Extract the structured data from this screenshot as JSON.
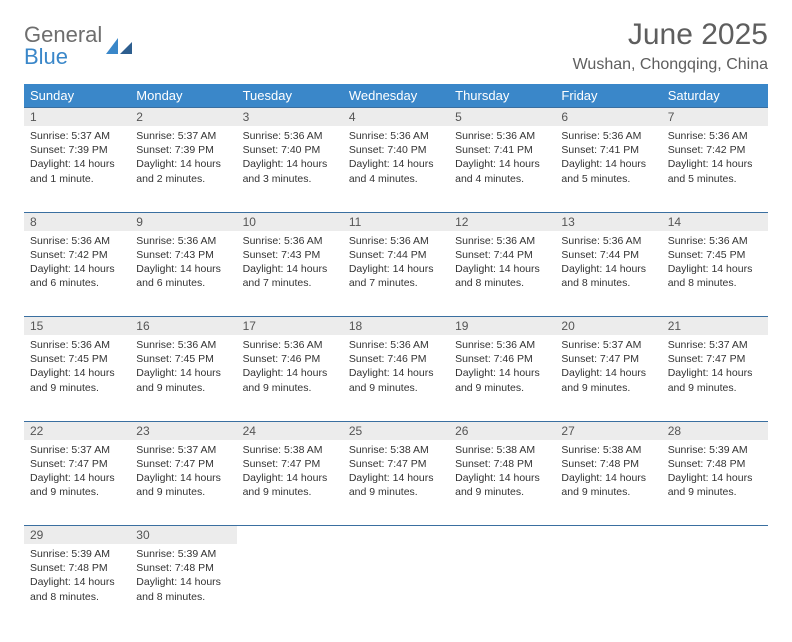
{
  "brand": {
    "line1": "General",
    "line2": "Blue"
  },
  "title": "June 2025",
  "location": "Wushan, Chongqing, China",
  "colors": {
    "header_bg": "#3a87c9",
    "header_text": "#ffffff",
    "daynum_bg": "#ececec",
    "rule": "#3a6fa0",
    "page_bg": "#ffffff",
    "text": "#333333",
    "logo_gray": "#6e6e6e",
    "logo_blue": "#3a87c9"
  },
  "weekdays": [
    "Sunday",
    "Monday",
    "Tuesday",
    "Wednesday",
    "Thursday",
    "Friday",
    "Saturday"
  ],
  "weeks": [
    {
      "days": [
        {
          "num": "1",
          "sunrise": "Sunrise: 5:37 AM",
          "sunset": "Sunset: 7:39 PM",
          "daylight": "Daylight: 14 hours and 1 minute."
        },
        {
          "num": "2",
          "sunrise": "Sunrise: 5:37 AM",
          "sunset": "Sunset: 7:39 PM",
          "daylight": "Daylight: 14 hours and 2 minutes."
        },
        {
          "num": "3",
          "sunrise": "Sunrise: 5:36 AM",
          "sunset": "Sunset: 7:40 PM",
          "daylight": "Daylight: 14 hours and 3 minutes."
        },
        {
          "num": "4",
          "sunrise": "Sunrise: 5:36 AM",
          "sunset": "Sunset: 7:40 PM",
          "daylight": "Daylight: 14 hours and 4 minutes."
        },
        {
          "num": "5",
          "sunrise": "Sunrise: 5:36 AM",
          "sunset": "Sunset: 7:41 PM",
          "daylight": "Daylight: 14 hours and 4 minutes."
        },
        {
          "num": "6",
          "sunrise": "Sunrise: 5:36 AM",
          "sunset": "Sunset: 7:41 PM",
          "daylight": "Daylight: 14 hours and 5 minutes."
        },
        {
          "num": "7",
          "sunrise": "Sunrise: 5:36 AM",
          "sunset": "Sunset: 7:42 PM",
          "daylight": "Daylight: 14 hours and 5 minutes."
        }
      ]
    },
    {
      "days": [
        {
          "num": "8",
          "sunrise": "Sunrise: 5:36 AM",
          "sunset": "Sunset: 7:42 PM",
          "daylight": "Daylight: 14 hours and 6 minutes."
        },
        {
          "num": "9",
          "sunrise": "Sunrise: 5:36 AM",
          "sunset": "Sunset: 7:43 PM",
          "daylight": "Daylight: 14 hours and 6 minutes."
        },
        {
          "num": "10",
          "sunrise": "Sunrise: 5:36 AM",
          "sunset": "Sunset: 7:43 PM",
          "daylight": "Daylight: 14 hours and 7 minutes."
        },
        {
          "num": "11",
          "sunrise": "Sunrise: 5:36 AM",
          "sunset": "Sunset: 7:44 PM",
          "daylight": "Daylight: 14 hours and 7 minutes."
        },
        {
          "num": "12",
          "sunrise": "Sunrise: 5:36 AM",
          "sunset": "Sunset: 7:44 PM",
          "daylight": "Daylight: 14 hours and 8 minutes."
        },
        {
          "num": "13",
          "sunrise": "Sunrise: 5:36 AM",
          "sunset": "Sunset: 7:44 PM",
          "daylight": "Daylight: 14 hours and 8 minutes."
        },
        {
          "num": "14",
          "sunrise": "Sunrise: 5:36 AM",
          "sunset": "Sunset: 7:45 PM",
          "daylight": "Daylight: 14 hours and 8 minutes."
        }
      ]
    },
    {
      "days": [
        {
          "num": "15",
          "sunrise": "Sunrise: 5:36 AM",
          "sunset": "Sunset: 7:45 PM",
          "daylight": "Daylight: 14 hours and 9 minutes."
        },
        {
          "num": "16",
          "sunrise": "Sunrise: 5:36 AM",
          "sunset": "Sunset: 7:45 PM",
          "daylight": "Daylight: 14 hours and 9 minutes."
        },
        {
          "num": "17",
          "sunrise": "Sunrise: 5:36 AM",
          "sunset": "Sunset: 7:46 PM",
          "daylight": "Daylight: 14 hours and 9 minutes."
        },
        {
          "num": "18",
          "sunrise": "Sunrise: 5:36 AM",
          "sunset": "Sunset: 7:46 PM",
          "daylight": "Daylight: 14 hours and 9 minutes."
        },
        {
          "num": "19",
          "sunrise": "Sunrise: 5:36 AM",
          "sunset": "Sunset: 7:46 PM",
          "daylight": "Daylight: 14 hours and 9 minutes."
        },
        {
          "num": "20",
          "sunrise": "Sunrise: 5:37 AM",
          "sunset": "Sunset: 7:47 PM",
          "daylight": "Daylight: 14 hours and 9 minutes."
        },
        {
          "num": "21",
          "sunrise": "Sunrise: 5:37 AM",
          "sunset": "Sunset: 7:47 PM",
          "daylight": "Daylight: 14 hours and 9 minutes."
        }
      ]
    },
    {
      "days": [
        {
          "num": "22",
          "sunrise": "Sunrise: 5:37 AM",
          "sunset": "Sunset: 7:47 PM",
          "daylight": "Daylight: 14 hours and 9 minutes."
        },
        {
          "num": "23",
          "sunrise": "Sunrise: 5:37 AM",
          "sunset": "Sunset: 7:47 PM",
          "daylight": "Daylight: 14 hours and 9 minutes."
        },
        {
          "num": "24",
          "sunrise": "Sunrise: 5:38 AM",
          "sunset": "Sunset: 7:47 PM",
          "daylight": "Daylight: 14 hours and 9 minutes."
        },
        {
          "num": "25",
          "sunrise": "Sunrise: 5:38 AM",
          "sunset": "Sunset: 7:47 PM",
          "daylight": "Daylight: 14 hours and 9 minutes."
        },
        {
          "num": "26",
          "sunrise": "Sunrise: 5:38 AM",
          "sunset": "Sunset: 7:48 PM",
          "daylight": "Daylight: 14 hours and 9 minutes."
        },
        {
          "num": "27",
          "sunrise": "Sunrise: 5:38 AM",
          "sunset": "Sunset: 7:48 PM",
          "daylight": "Daylight: 14 hours and 9 minutes."
        },
        {
          "num": "28",
          "sunrise": "Sunrise: 5:39 AM",
          "sunset": "Sunset: 7:48 PM",
          "daylight": "Daylight: 14 hours and 9 minutes."
        }
      ]
    },
    {
      "days": [
        {
          "num": "29",
          "sunrise": "Sunrise: 5:39 AM",
          "sunset": "Sunset: 7:48 PM",
          "daylight": "Daylight: 14 hours and 8 minutes."
        },
        {
          "num": "30",
          "sunrise": "Sunrise: 5:39 AM",
          "sunset": "Sunset: 7:48 PM",
          "daylight": "Daylight: 14 hours and 8 minutes."
        },
        {
          "empty": true
        },
        {
          "empty": true
        },
        {
          "empty": true
        },
        {
          "empty": true
        },
        {
          "empty": true
        }
      ]
    }
  ]
}
